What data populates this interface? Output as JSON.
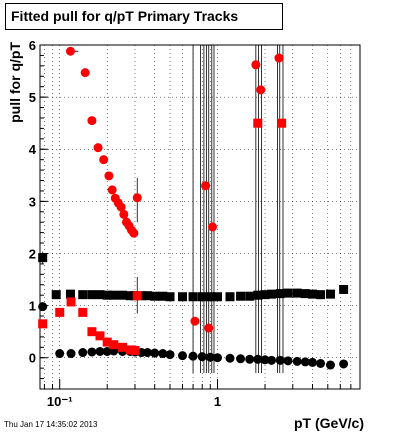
{
  "chart_data": {
    "type": "scatter",
    "title": "Fitted pull for q/pT  Primary Tracks",
    "xlabel": "pT (GeV/c)",
    "ylabel": "pull for q/pT",
    "x_scale": "log",
    "xlim": [
      0.075,
      8.0
    ],
    "ylim": [
      -0.6,
      6.0
    ],
    "y_ticks": [
      "0",
      "1",
      "2",
      "3",
      "4",
      "5",
      "6"
    ],
    "x_tick_labels": [
      {
        "x": 0.1,
        "label": "10⁻¹"
      },
      {
        "x": 1,
        "label": "1"
      }
    ],
    "grid": true,
    "legend": "none",
    "series": [
      {
        "marker": "square",
        "color": "#000000",
        "points": [
          [
            0.078,
            1.92
          ],
          [
            0.095,
            1.21
          ],
          [
            0.117,
            1.22
          ],
          [
            0.14,
            1.21
          ],
          [
            0.16,
            1.21
          ],
          [
            0.18,
            1.21
          ],
          [
            0.2,
            1.2
          ],
          [
            0.22,
            1.2
          ],
          [
            0.25,
            1.2
          ],
          [
            0.28,
            1.19
          ],
          [
            0.3,
            1.19
          ],
          [
            0.33,
            1.19
          ],
          [
            0.36,
            1.19
          ],
          [
            0.4,
            1.18
          ],
          [
            0.45,
            1.18
          ],
          [
            0.5,
            1.17
          ],
          [
            0.6,
            1.17
          ],
          [
            0.7,
            1.17
          ],
          [
            0.8,
            1.17
          ],
          [
            0.9,
            1.17
          ],
          [
            1.0,
            1.17
          ],
          [
            1.2,
            1.17
          ],
          [
            1.4,
            1.18
          ],
          [
            1.6,
            1.18
          ],
          [
            1.8,
            1.2
          ],
          [
            2.0,
            1.21
          ],
          [
            2.2,
            1.22
          ],
          [
            2.5,
            1.23
          ],
          [
            2.8,
            1.24
          ],
          [
            3.2,
            1.24
          ],
          [
            3.6,
            1.23
          ],
          [
            4.0,
            1.22
          ],
          [
            4.5,
            1.21
          ],
          [
            5.2,
            1.22
          ],
          [
            6.3,
            1.31
          ]
        ]
      },
      {
        "marker": "circle",
        "color": "#000000",
        "points": [
          [
            0.078,
            0.98
          ],
          [
            0.1,
            0.08
          ],
          [
            0.118,
            0.08
          ],
          [
            0.14,
            0.1
          ],
          [
            0.16,
            0.11
          ],
          [
            0.18,
            0.12
          ],
          [
            0.2,
            0.12
          ],
          [
            0.22,
            0.13
          ],
          [
            0.25,
            0.12
          ],
          [
            0.28,
            0.12
          ],
          [
            0.3,
            0.11
          ],
          [
            0.33,
            0.1
          ],
          [
            0.36,
            0.1
          ],
          [
            0.4,
            0.09
          ],
          [
            0.45,
            0.08
          ],
          [
            0.5,
            0.06
          ],
          [
            0.6,
            0.04
          ],
          [
            0.7,
            0.03
          ],
          [
            0.8,
            0.02
          ],
          [
            0.9,
            0.01
          ],
          [
            1.0,
            0.0
          ],
          [
            1.2,
            -0.01
          ],
          [
            1.4,
            -0.02
          ],
          [
            1.6,
            -0.03
          ],
          [
            1.8,
            -0.03
          ],
          [
            2.0,
            -0.04
          ],
          [
            2.2,
            -0.05
          ],
          [
            2.5,
            -0.05
          ],
          [
            2.8,
            -0.06
          ],
          [
            3.2,
            -0.07
          ],
          [
            3.6,
            -0.08
          ],
          [
            4.0,
            -0.09
          ],
          [
            4.5,
            -0.11
          ],
          [
            5.2,
            -0.14
          ],
          [
            6.3,
            -0.12
          ]
        ]
      },
      {
        "marker": "square",
        "color": "#ff0000",
        "points": [
          [
            0.078,
            0.65
          ],
          [
            0.1,
            0.87
          ],
          [
            0.118,
            1.07
          ],
          [
            0.14,
            0.87
          ],
          [
            0.16,
            0.5
          ],
          [
            0.18,
            0.42
          ],
          [
            0.2,
            0.3
          ],
          [
            0.22,
            0.25
          ],
          [
            0.25,
            0.2
          ],
          [
            0.28,
            0.15
          ],
          [
            0.3,
            0.14
          ],
          [
            0.31,
            1.19
          ],
          [
            1.8,
            4.5
          ],
          [
            2.55,
            4.5
          ]
        ]
      },
      {
        "marker": "circle",
        "color": "#ff0000",
        "points": [
          [
            0.117,
            5.88
          ],
          [
            0.145,
            5.47
          ],
          [
            0.16,
            4.55
          ],
          [
            0.175,
            4.03
          ],
          [
            0.19,
            3.8
          ],
          [
            0.205,
            3.49
          ],
          [
            0.215,
            3.22
          ],
          [
            0.225,
            3.06
          ],
          [
            0.235,
            2.97
          ],
          [
            0.245,
            2.89
          ],
          [
            0.255,
            2.75
          ],
          [
            0.265,
            2.6
          ],
          [
            0.275,
            2.53
          ],
          [
            0.285,
            2.45
          ],
          [
            0.295,
            2.39
          ],
          [
            0.31,
            3.07
          ],
          [
            0.72,
            0.7
          ],
          [
            0.84,
            3.3
          ],
          [
            0.88,
            0.57
          ],
          [
            0.93,
            2.51
          ],
          [
            1.75,
            5.62
          ],
          [
            1.88,
            5.14
          ],
          [
            2.45,
            5.75
          ]
        ]
      }
    ]
  },
  "footer": {
    "timestamp": "Thu Jan 17 14:35:02 2013"
  }
}
